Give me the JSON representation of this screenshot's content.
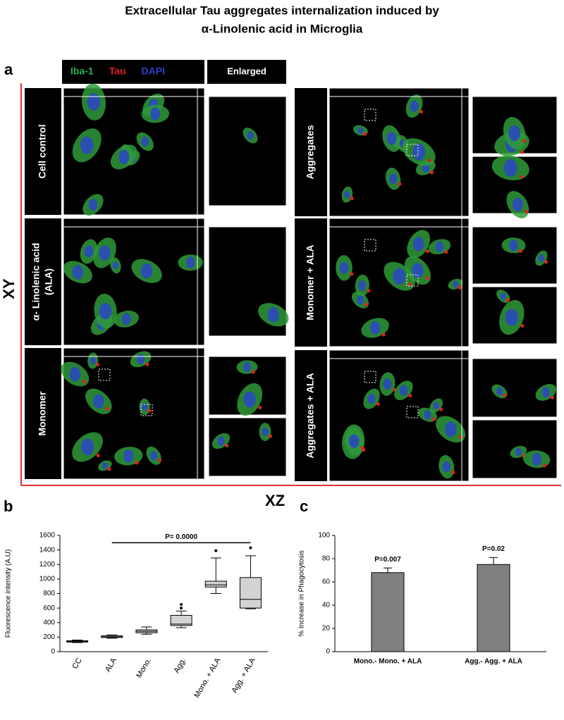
{
  "title_lines": [
    "Extracellular  Tau aggregates internalization  induced by",
    "α-Linolenic acid in Microglia"
  ],
  "panel_a": {
    "panel_label": "a",
    "channels": [
      {
        "name": "Iba-1",
        "color": "#1fb34f"
      },
      {
        "name": "Tau",
        "color": "#e02020"
      },
      {
        "name": "DAPI",
        "color": "#2f3fd0"
      }
    ],
    "enlarged_header": "Enlarged",
    "conditions": [
      [
        "Cell control"
      ],
      [
        "α- Linolenic acid",
        "(ALA)"
      ],
      [
        "Monomer"
      ],
      [
        "Aggregates"
      ],
      [
        "Monomer  + ALA"
      ],
      [
        "Aggregates + ALA"
      ]
    ],
    "y_axis_label": "XY",
    "x_axis_label": "XZ"
  },
  "chart_data": [
    {
      "type": "box",
      "panel_label": "b",
      "ylabel": "Fluorescence intensity (A.U)",
      "categories": [
        "CC",
        "ALA",
        "Mono.",
        "Agg.",
        "Mono. + ALA",
        "Agg. + ALA"
      ],
      "boxes": [
        {
          "min": 125,
          "q1": 132,
          "median": 140,
          "q3": 150,
          "max": 160,
          "outliers": []
        },
        {
          "min": 185,
          "q1": 195,
          "median": 205,
          "q3": 220,
          "max": 230,
          "outliers": []
        },
        {
          "min": 240,
          "q1": 260,
          "median": 280,
          "q3": 300,
          "max": 340,
          "outliers": []
        },
        {
          "min": 330,
          "q1": 360,
          "median": 380,
          "q3": 500,
          "max": 560,
          "outliers": [
            600,
            650
          ]
        },
        {
          "min": 800,
          "q1": 890,
          "median": 920,
          "q3": 970,
          "max": 1290,
          "outliers": [
            1390
          ]
        },
        {
          "min": 590,
          "q1": 600,
          "median": 720,
          "q3": 1020,
          "max": 1320,
          "outliers": [
            1430
          ]
        }
      ],
      "color": "#d3d3d3",
      "annotation": "P= 0.0000",
      "annotation_level": 1500,
      "ylim": [
        0,
        1600
      ],
      "yticks": [
        0,
        200,
        400,
        600,
        800,
        1000,
        1200,
        1400,
        1600
      ],
      "grid": false
    },
    {
      "type": "bar",
      "panel_label": "c",
      "ylabel": "% Increase in Phagocytosis",
      "categories": [
        "Mono.- Mono. + ALA",
        "Agg.- Agg. + ALA"
      ],
      "values": [
        68,
        75
      ],
      "errors": [
        4,
        6
      ],
      "annotations": [
        "P=0.007",
        "P=0.02"
      ],
      "color": "#808080",
      "ylim": [
        0,
        100
      ],
      "yticks": [
        0,
        20,
        40,
        60,
        80,
        100
      ],
      "grid": false
    }
  ]
}
